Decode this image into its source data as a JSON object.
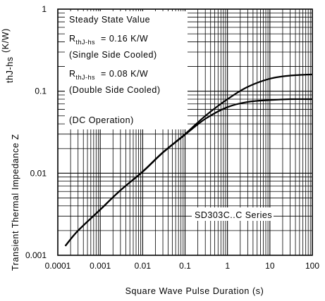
{
  "chart_data": {
    "type": "line",
    "xscale": "log",
    "yscale": "log",
    "xlim": [
      0.0001,
      100
    ],
    "ylim": [
      0.001,
      1
    ],
    "grid": true,
    "x_tick_labels": [
      "0.0001",
      "0.001",
      "0.01",
      "0.1",
      "1",
      "10",
      "100"
    ],
    "y_tick_labels": [
      "0.001",
      "0.01",
      "0.1",
      "1"
    ],
    "xlabel": "Square Wave Pulse Duration (s)",
    "ylabel": {
      "main": "Transient Thermal Impedance Z",
      "subscript": "thJ-hs",
      "unit": "(K/W)"
    },
    "annotation": {
      "line1": "Steady State Value",
      "r1_symbol": "R",
      "r1_sub": "thJ-hs",
      "r1_value": "= 0.16 K/W",
      "line3": "(Single Side Cooled)",
      "r2_symbol": "R",
      "r2_sub": "thJ-hs",
      "r2_value": "= 0.08 K/W",
      "line5": "(Double Side Cooled)",
      "line6": "(DC Operation)"
    },
    "series_label": "SD303C..C Series",
    "series": [
      {
        "x": [
          0.00015,
          0.0003,
          0.001,
          0.003,
          0.01,
          0.03,
          0.1,
          0.3,
          1,
          3,
          10,
          30,
          100
        ],
        "y": [
          0.0013,
          0.002,
          0.0036,
          0.0062,
          0.0105,
          0.018,
          0.03,
          0.05,
          0.08,
          0.113,
          0.142,
          0.155,
          0.16
        ]
      },
      {
        "x": [
          0.00015,
          0.0003,
          0.001,
          0.003,
          0.01,
          0.03,
          0.1,
          0.3,
          1,
          3,
          10,
          30,
          100
        ],
        "y": [
          0.0013,
          0.002,
          0.0036,
          0.0062,
          0.0104,
          0.0178,
          0.0295,
          0.046,
          0.064,
          0.074,
          0.078,
          0.08,
          0.08
        ]
      }
    ]
  }
}
